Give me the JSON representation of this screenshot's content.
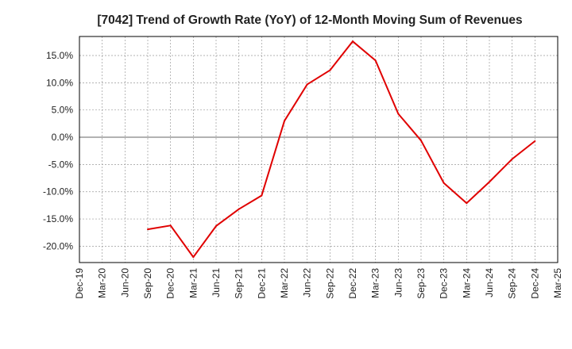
{
  "chart_data": {
    "type": "line",
    "title": "[7042]  Trend of Growth Rate (YoY) of 12-Month Moving Sum of Revenues",
    "xlabel": "",
    "ylabel": "",
    "x_ticks": [
      "Dec-19",
      "Mar-20",
      "Jun-20",
      "Sep-20",
      "Dec-20",
      "Mar-21",
      "Jun-21",
      "Sep-21",
      "Dec-21",
      "Mar-22",
      "Jun-22",
      "Sep-22",
      "Dec-22",
      "Mar-23",
      "Jun-23",
      "Sep-23",
      "Dec-23",
      "Mar-24",
      "Jun-24",
      "Sep-24",
      "Dec-24",
      "Mar-25"
    ],
    "y_ticks": [
      "15.0%",
      "10.0%",
      "5.0%",
      "0.0%",
      "-5.0%",
      "-10.0%",
      "-15.0%",
      "-20.0%"
    ],
    "y_tick_values": [
      15,
      10,
      5,
      0,
      -5,
      -10,
      -15,
      -20
    ],
    "ylim": [
      -23.0,
      18.5
    ],
    "grid": true,
    "line_color": "#e00000",
    "series": [
      {
        "x": [
          "Sep-20",
          "Dec-20",
          "Mar-21",
          "Jun-21",
          "Sep-21",
          "Dec-21",
          "Mar-22",
          "Jun-22",
          "Sep-22",
          "Dec-22",
          "Mar-23",
          "Jun-23",
          "Sep-23",
          "Dec-23",
          "Mar-24",
          "Jun-24",
          "Sep-24",
          "Dec-24"
        ],
        "values": [
          -16.9,
          -16.2,
          -22.0,
          -16.3,
          -13.2,
          -10.7,
          3.0,
          9.7,
          12.3,
          17.6,
          14.1,
          4.3,
          -0.6,
          -8.4,
          -12.1,
          -8.2,
          -4.0,
          -0.7
        ]
      }
    ]
  }
}
